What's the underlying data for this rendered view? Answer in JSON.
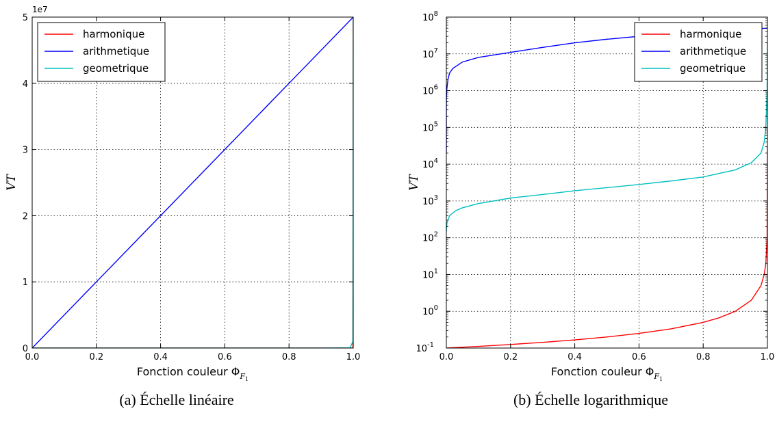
{
  "chart_data": [
    {
      "type": "line",
      "scale": "linear",
      "caption": "(a) Échelle linéaire",
      "xlabel": "Fonction couleur Φ_F₁",
      "ylabel": "VT",
      "xlim": [
        0.0,
        1.0
      ],
      "ylim": [
        0,
        50000000
      ],
      "x_ticks": [
        "0.0",
        "0.2",
        "0.4",
        "0.6",
        "0.8",
        "1.0"
      ],
      "y_ticks": [
        "0",
        "1",
        "2",
        "3",
        "4",
        "5"
      ],
      "y_offset_label": "1e7",
      "grid": true,
      "legend": "top-left",
      "series": [
        {
          "name": "harmonique",
          "color": "#ff0000",
          "x": [
            0.0,
            0.2,
            0.4,
            0.6,
            0.8,
            0.9,
            0.99,
            0.999,
            1.0
          ],
          "y": [
            0.1,
            0.125,
            0.167,
            0.25,
            0.5,
            1.0,
            10,
            100,
            50000000
          ]
        },
        {
          "name": "arithmetique",
          "color": "#0000ff",
          "x": [
            0.0,
            0.2,
            0.4,
            0.6,
            0.8,
            1.0
          ],
          "y": [
            0,
            10000000,
            20000000,
            30000000,
            40000000,
            50000000
          ]
        },
        {
          "name": "geometrique",
          "color": "#00bfbf",
          "x": [
            0.0,
            0.2,
            0.4,
            0.6,
            0.8,
            0.9,
            0.99,
            0.999,
            1.0
          ],
          "y": [
            150,
            1200,
            1900,
            2800,
            4500,
            7000,
            30000,
            1000000,
            50000000
          ]
        }
      ]
    },
    {
      "type": "line",
      "scale": "log",
      "caption": "(b) Échelle logarithmique",
      "xlabel": "Fonction couleur Φ_F₁",
      "ylabel": "VT",
      "xlim": [
        0.0,
        1.0
      ],
      "ylim": [
        0.1,
        100000000
      ],
      "x_ticks": [
        "0.0",
        "0.2",
        "0.4",
        "0.6",
        "0.8",
        "1.0"
      ],
      "y_ticks": [
        "10^-1",
        "10^0",
        "10^1",
        "10^2",
        "10^3",
        "10^4",
        "10^5",
        "10^6",
        "10^7",
        "10^8"
      ],
      "grid": true,
      "legend": "top-right",
      "series": [
        {
          "name": "harmonique",
          "color": "#ff0000",
          "x": [
            0.0,
            0.1,
            0.2,
            0.3,
            0.4,
            0.5,
            0.6,
            0.7,
            0.8,
            0.85,
            0.9,
            0.95,
            0.98,
            0.99,
            0.995,
            0.999,
            1.0
          ],
          "y": [
            0.1,
            0.111,
            0.125,
            0.143,
            0.167,
            0.2,
            0.25,
            0.333,
            0.5,
            0.667,
            1.0,
            2.0,
            5.0,
            10,
            20,
            100,
            30000
          ]
        },
        {
          "name": "arithmetique",
          "color": "#0000ff",
          "x": [
            3e-06,
            1e-05,
            0.0001,
            0.001,
            0.005,
            0.01,
            0.02,
            0.05,
            0.1,
            0.2,
            0.3,
            0.4,
            0.5,
            0.6,
            0.7,
            0.8,
            0.9,
            1.0
          ],
          "y": [
            20000,
            120000,
            500000,
            1000000,
            2000000,
            3000000,
            4000000,
            6000000,
            8000000,
            11000000,
            15000000,
            20000000,
            25000000,
            30000000,
            35000000,
            40000000,
            45000000,
            50000000
          ]
        },
        {
          "name": "geometrique",
          "color": "#00bfbf",
          "x": [
            0.0,
            0.002,
            0.01,
            0.03,
            0.05,
            0.1,
            0.2,
            0.3,
            0.4,
            0.5,
            0.6,
            0.7,
            0.8,
            0.9,
            0.95,
            0.98,
            0.99,
            0.995,
            0.999,
            1.0
          ],
          "y": [
            150,
            250,
            400,
            550,
            650,
            850,
            1200,
            1500,
            1900,
            2300,
            2800,
            3500,
            4500,
            7000,
            11000,
            20000,
            40000,
            100000,
            1000000,
            20000000
          ]
        }
      ]
    }
  ]
}
